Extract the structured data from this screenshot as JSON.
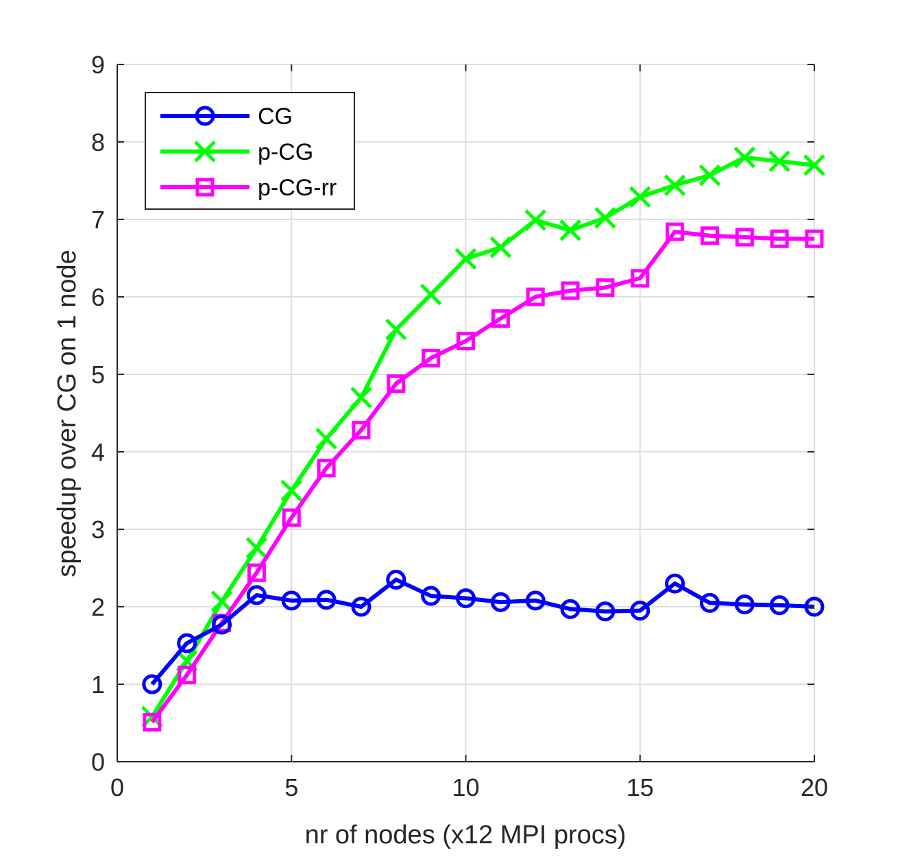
{
  "chart_data": {
    "type": "line",
    "title": "",
    "xlabel": "nr of nodes (x12 MPI procs)",
    "ylabel": "speedup over CG on 1 node",
    "xlim": [
      0,
      20
    ],
    "ylim": [
      0,
      9
    ],
    "xticks": [
      0,
      5,
      10,
      15,
      20
    ],
    "yticks": [
      0,
      1,
      2,
      3,
      4,
      5,
      6,
      7,
      8,
      9
    ],
    "xtick_labels": [
      "0",
      "5",
      "10",
      "15",
      "20"
    ],
    "ytick_labels": [
      "0",
      "1",
      "2",
      "3",
      "4",
      "5",
      "6",
      "7",
      "8",
      "9"
    ],
    "grid": true,
    "legend_position": "top-left",
    "x": [
      1,
      2,
      3,
      4,
      5,
      6,
      7,
      8,
      9,
      10,
      11,
      12,
      13,
      14,
      15,
      16,
      17,
      18,
      19,
      20
    ],
    "series": [
      {
        "name": "CG",
        "color": "#0000ff",
        "marker": "circle",
        "values": [
          1.0,
          1.53,
          1.77,
          2.15,
          2.08,
          2.09,
          2.0,
          2.35,
          2.14,
          2.11,
          2.06,
          2.08,
          1.97,
          1.94,
          1.95,
          2.3,
          2.05,
          2.03,
          2.02,
          2.0
        ]
      },
      {
        "name": "p-CG",
        "color": "#00ff00",
        "marker": "x",
        "values": [
          0.58,
          1.3,
          2.07,
          2.76,
          3.5,
          4.17,
          4.7,
          5.58,
          6.03,
          6.49,
          6.64,
          6.99,
          6.86,
          7.02,
          7.29,
          7.44,
          7.57,
          7.8,
          7.75,
          7.7
        ]
      },
      {
        "name": "p-CG-rr",
        "color": "#ff00ff",
        "marker": "square",
        "values": [
          0.51,
          1.12,
          1.79,
          2.44,
          3.15,
          3.79,
          4.28,
          4.88,
          5.21,
          5.43,
          5.72,
          6.0,
          6.08,
          6.12,
          6.24,
          6.84,
          6.79,
          6.77,
          6.75,
          6.75
        ]
      }
    ]
  }
}
